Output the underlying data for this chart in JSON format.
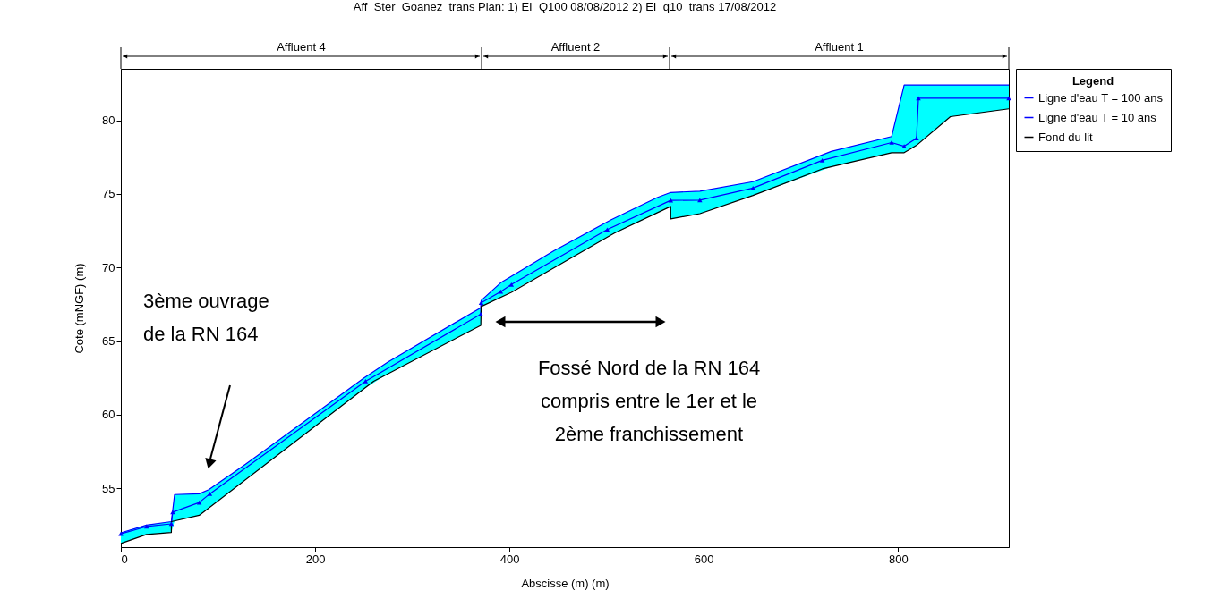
{
  "chart_data": {
    "type": "line",
    "title": "Aff_Ster_Goanez_trans    Plan:    1) EI_Q100    08/08/2012    2) EI_q10_trans    17/08/2012",
    "xlabel": "Abscisse (m) (m)",
    "ylabel": "Cote (mNGF) (m)",
    "legend_title": "Legend",
    "legend": "right",
    "grid": false,
    "xlim": [
      0,
      914
    ],
    "xticks": [
      0,
      200,
      400,
      600,
      800
    ],
    "ylim": [
      51,
      83.5
    ],
    "yticks": [
      55,
      60,
      65,
      70,
      75,
      80
    ],
    "series": [
      {
        "name": "Ligne d'eau T = 100 ans",
        "color": "#0000ff",
        "marker": "none",
        "x": [
          0,
          26.4,
          52,
          55.3,
          80.7,
          90.5,
          128.4,
          250.3,
          274.9,
          370.5,
          370.9,
          391,
          445.8,
          504.4,
          552,
          566,
          566,
          596,
          650.7,
          731.2,
          793.4,
          806.3,
          819,
          853.9,
          914
        ],
        "values": [
          51.97,
          52.5,
          52.73,
          54.57,
          54.62,
          54.9,
          56.63,
          62.49,
          63.58,
          67.27,
          67.76,
          68.96,
          71.14,
          73.23,
          74.75,
          75.1,
          75.1,
          75.18,
          75.83,
          77.89,
          78.9,
          82.4,
          82.4,
          82.4,
          82.4
        ],
        "lower": [
          51.25,
          51.86,
          52.0,
          52.78,
          53.16,
          53.66,
          55.58,
          61.75,
          62.78,
          66.07,
          67.35,
          67.97,
          69.98,
          72.2,
          73.71,
          74.15,
          73.3,
          73.66,
          74.9,
          76.84,
          77.8,
          77.8,
          78.3,
          80.25,
          80.78
        ],
        "upper": [
          51.97,
          52.5,
          52.73,
          54.57,
          54.62,
          54.9,
          56.63,
          62.49,
          63.58,
          67.27,
          67.76,
          68.96,
          71.14,
          73.23,
          74.75,
          75.1,
          75.1,
          75.18,
          75.83,
          77.89,
          78.9,
          82.4,
          82.4,
          82.4,
          82.4
        ]
      },
      {
        "name": "Ligne d'eau T = 10 ans",
        "color": "#0000ff",
        "marker": "triangle",
        "x": [
          0,
          26.4,
          52,
          53.4,
          80.7,
          91.6,
          251.9,
          370.5,
          370.9,
          391,
          402,
          500.7,
          566,
          596,
          650.7,
          722,
          793.4,
          806.3,
          819,
          821,
          914
        ],
        "values": [
          51.9,
          52.4,
          52.58,
          53.38,
          54.03,
          54.62,
          62.27,
          66.83,
          67.6,
          68.36,
          68.84,
          72.58,
          74.56,
          74.58,
          75.4,
          77.28,
          78.49,
          78.24,
          78.78,
          81.5,
          81.5
        ]
      },
      {
        "name": "Fond du lit",
        "color": "#000000",
        "marker": "none",
        "x": [
          0,
          26.4,
          52,
          52,
          80.7,
          260.2,
          370.5,
          370.9,
          402,
          508,
          566,
          566,
          596,
          650.7,
          722,
          793.4,
          806.3,
          819,
          853.9,
          914
        ],
        "values": [
          51.25,
          51.86,
          52.0,
          52.73,
          53.16,
          62.27,
          66.07,
          67.35,
          68.31,
          72.34,
          74.15,
          73.3,
          73.66,
          74.9,
          76.7,
          77.8,
          77.8,
          78.3,
          80.25,
          80.78
        ]
      }
    ],
    "annotations": [
      "Affluent 4",
      "Affluent 2",
      "Affluent 1",
      "3ème ouvrage\nde la RN 164",
      "Fossé Nord de la RN 164\ncompris entre le 1er et le\n2ème franchissement"
    ]
  }
}
